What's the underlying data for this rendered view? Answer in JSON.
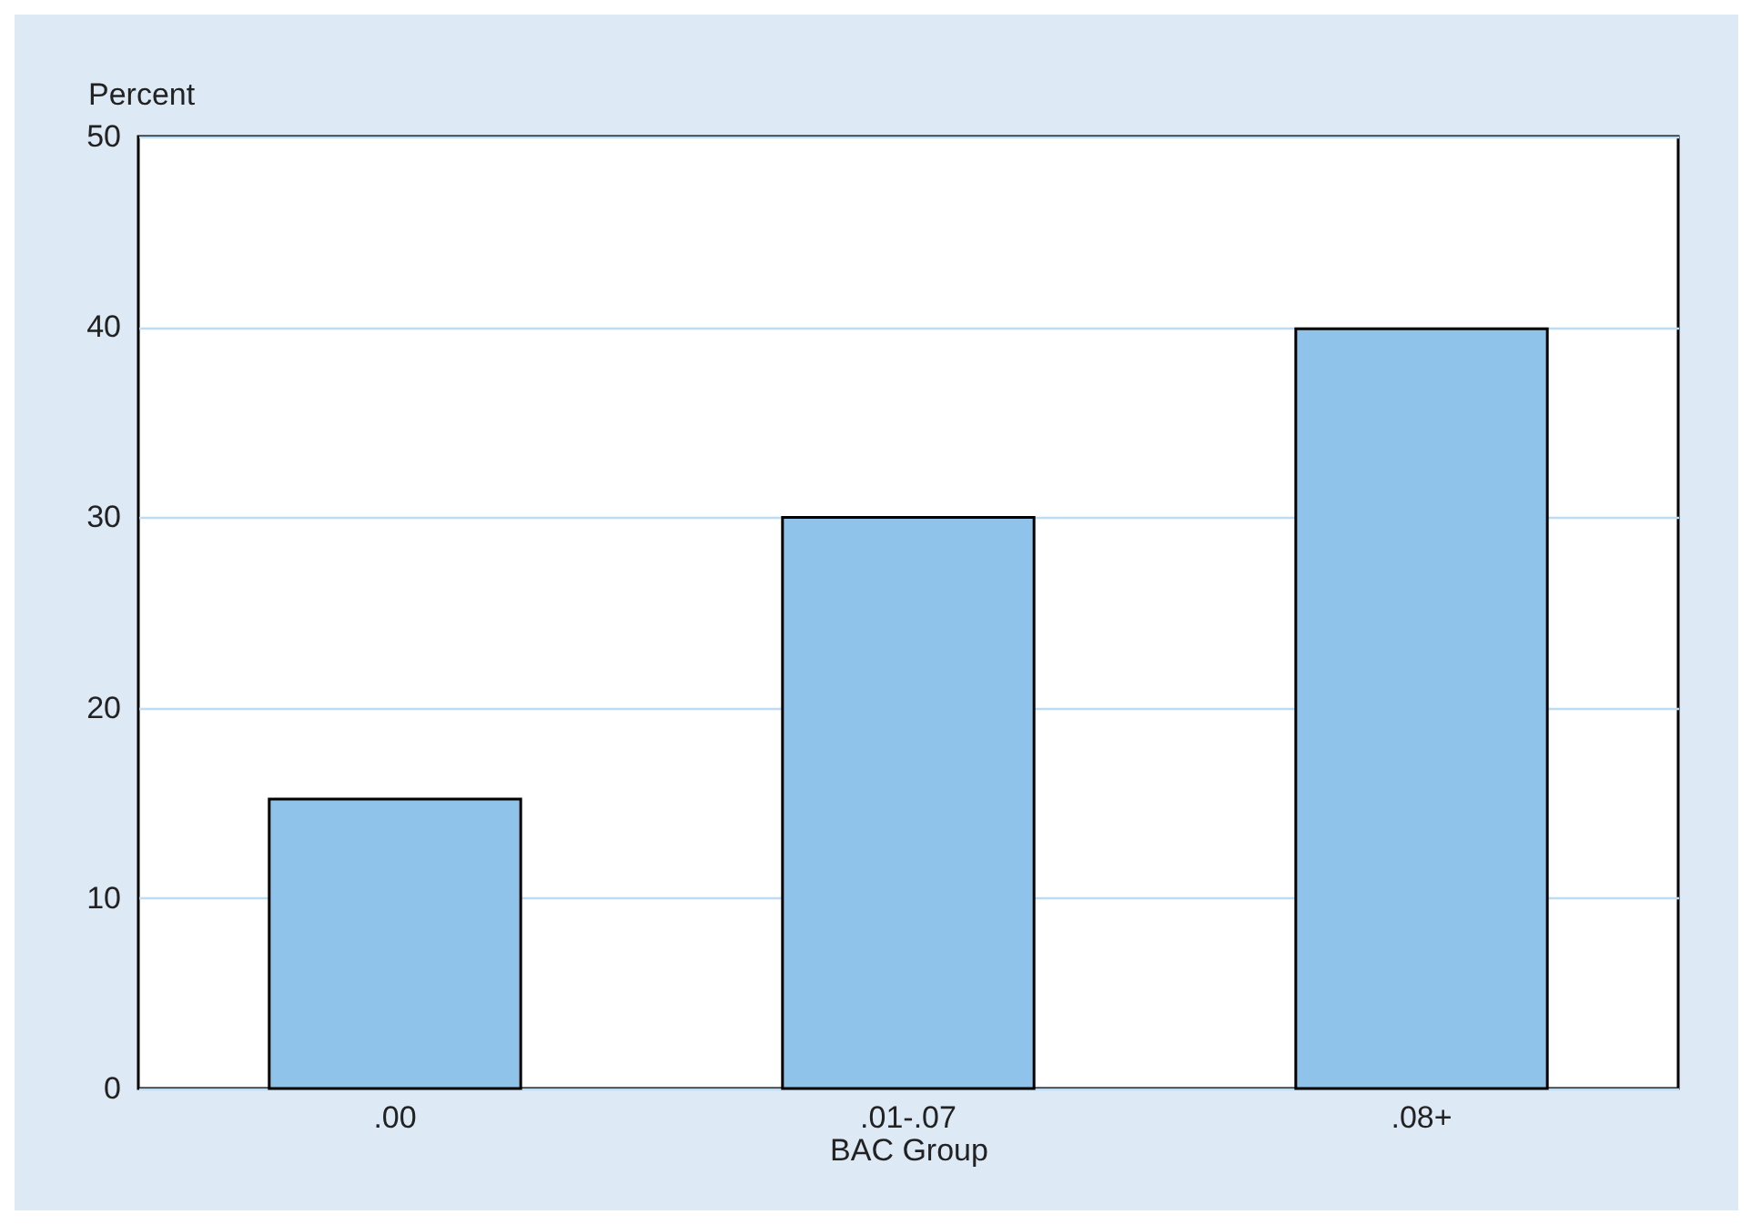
{
  "chart_data": {
    "type": "bar",
    "xlabel": "BAC Group",
    "ylabel": "Percent",
    "categories": [
      ".00",
      ".01-.07",
      ".08+"
    ],
    "values": [
      15.2,
      30,
      39.9
    ],
    "color": "#8fc3ea",
    "ylim": [
      0,
      50
    ],
    "yticks": [
      0,
      10,
      20,
      30,
      40,
      50
    ],
    "grid": "y"
  }
}
